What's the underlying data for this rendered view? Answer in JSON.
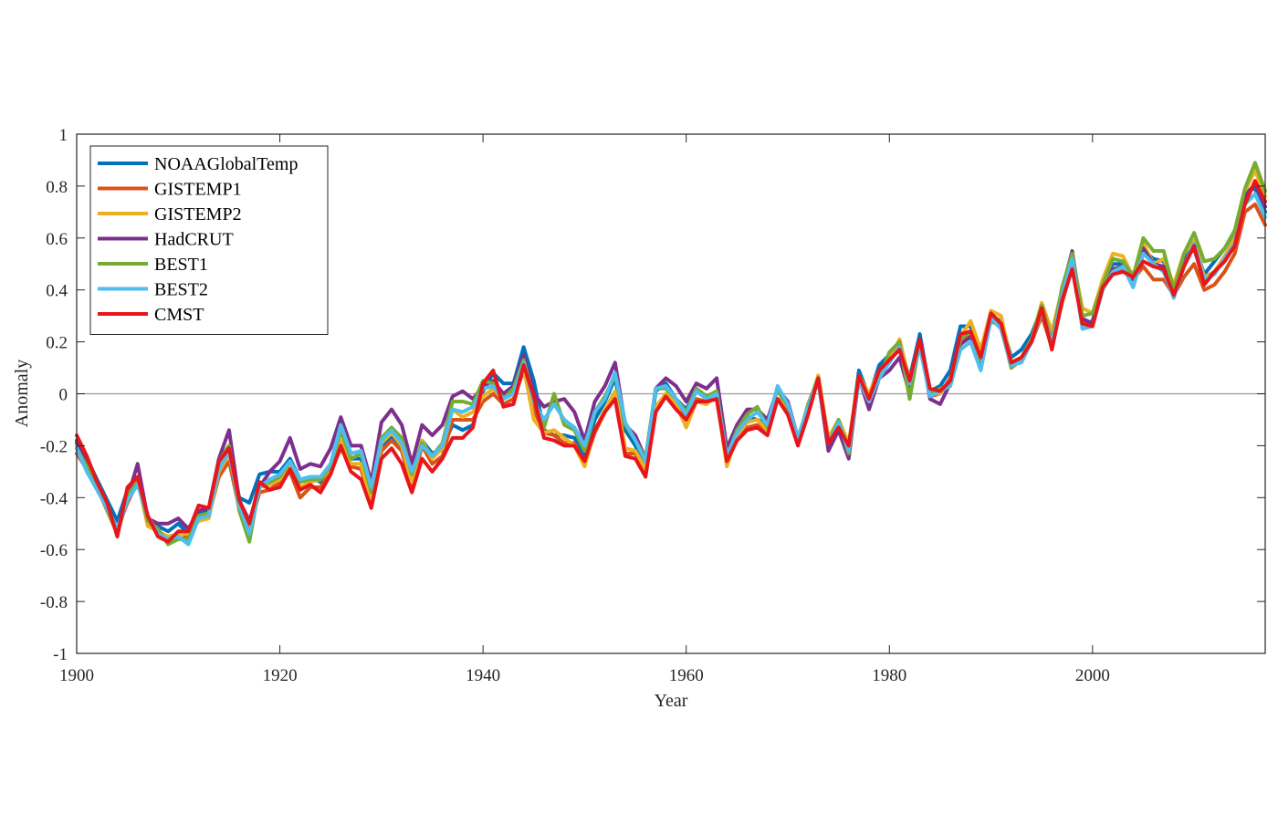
{
  "chart_data": {
    "type": "line",
    "title": "",
    "xlabel": "Year",
    "ylabel": "Anomaly",
    "xlim": [
      1900,
      2017
    ],
    "ylim": [
      -1,
      1
    ],
    "xticks": [
      1900,
      1920,
      1940,
      1960,
      1980,
      2000
    ],
    "yticks": [
      -1,
      -0.8,
      -0.6,
      -0.4,
      -0.2,
      0,
      0.2,
      0.4,
      0.6,
      0.8,
      1
    ],
    "ytick_labels": [
      "-1",
      "-0.8",
      "-0.6",
      "-0.4",
      "-0.2",
      "0",
      "0.2",
      "0.4",
      "0.6",
      "0.8",
      "1"
    ],
    "zero_line": true,
    "legend_position": "top-left",
    "x": [
      1900,
      1901,
      1902,
      1903,
      1904,
      1905,
      1906,
      1907,
      1908,
      1909,
      1910,
      1911,
      1912,
      1913,
      1914,
      1915,
      1916,
      1917,
      1918,
      1919,
      1920,
      1921,
      1922,
      1923,
      1924,
      1925,
      1926,
      1927,
      1928,
      1929,
      1930,
      1931,
      1932,
      1933,
      1934,
      1935,
      1936,
      1937,
      1938,
      1939,
      1940,
      1941,
      1942,
      1943,
      1944,
      1945,
      1946,
      1947,
      1948,
      1949,
      1950,
      1951,
      1952,
      1953,
      1954,
      1955,
      1956,
      1957,
      1958,
      1959,
      1960,
      1961,
      1962,
      1963,
      1964,
      1965,
      1966,
      1967,
      1968,
      1969,
      1970,
      1971,
      1972,
      1973,
      1974,
      1975,
      1976,
      1977,
      1978,
      1979,
      1980,
      1981,
      1982,
      1983,
      1984,
      1985,
      1986,
      1987,
      1988,
      1989,
      1990,
      1991,
      1992,
      1993,
      1994,
      1995,
      1996,
      1997,
      1998,
      1999,
      2000,
      2001,
      2002,
      2003,
      2004,
      2005,
      2006,
      2007,
      2008,
      2009,
      2010,
      2011,
      2012,
      2013,
      2014,
      2015,
      2016,
      2017
    ],
    "series": [
      {
        "name": "NOAAGlobalTemp",
        "color": "#0072BD",
        "values": [
          -0.19,
          -0.25,
          -0.33,
          -0.41,
          -0.49,
          -0.37,
          -0.33,
          -0.48,
          -0.51,
          -0.53,
          -0.5,
          -0.54,
          -0.46,
          -0.45,
          -0.26,
          -0.2,
          -0.4,
          -0.42,
          -0.31,
          -0.3,
          -0.3,
          -0.25,
          -0.33,
          -0.32,
          -0.34,
          -0.3,
          -0.14,
          -0.25,
          -0.25,
          -0.4,
          -0.2,
          -0.17,
          -0.21,
          -0.33,
          -0.18,
          -0.23,
          -0.21,
          -0.12,
          -0.14,
          -0.12,
          0.01,
          0.08,
          0.04,
          0.04,
          0.18,
          0.05,
          -0.14,
          -0.16,
          -0.16,
          -0.17,
          -0.24,
          -0.1,
          -0.03,
          0.06,
          -0.14,
          -0.2,
          -0.29,
          0.01,
          0.04,
          -0.02,
          -0.06,
          0.02,
          -0.01,
          0.0,
          -0.23,
          -0.14,
          -0.09,
          -0.1,
          -0.12,
          0.02,
          -0.06,
          -0.19,
          -0.06,
          0.07,
          -0.18,
          -0.12,
          -0.21,
          0.09,
          -0.01,
          0.11,
          0.15,
          0.19,
          0.06,
          0.23,
          0.01,
          0.03,
          0.09,
          0.26,
          0.26,
          0.14,
          0.3,
          0.28,
          0.14,
          0.17,
          0.23,
          0.33,
          0.21,
          0.39,
          0.53,
          0.27,
          0.28,
          0.43,
          0.5,
          0.5,
          0.46,
          0.55,
          0.52,
          0.51,
          0.42,
          0.51,
          0.58,
          0.46,
          0.51,
          0.56,
          0.62,
          0.78,
          0.79,
          0.7
        ]
      },
      {
        "name": "GISTEMP1",
        "color": "#D95319",
        "values": [
          -0.23,
          -0.29,
          -0.36,
          -0.45,
          -0.52,
          -0.42,
          -0.34,
          -0.49,
          -0.53,
          -0.56,
          -0.56,
          -0.55,
          -0.48,
          -0.47,
          -0.32,
          -0.26,
          -0.44,
          -0.52,
          -0.38,
          -0.37,
          -0.34,
          -0.3,
          -0.4,
          -0.36,
          -0.36,
          -0.3,
          -0.21,
          -0.28,
          -0.29,
          -0.43,
          -0.22,
          -0.18,
          -0.22,
          -0.36,
          -0.2,
          -0.27,
          -0.24,
          -0.1,
          -0.1,
          -0.1,
          -0.03,
          0.0,
          -0.04,
          -0.02,
          0.09,
          -0.06,
          -0.15,
          -0.16,
          -0.19,
          -0.19,
          -0.27,
          -0.15,
          -0.07,
          0.0,
          -0.23,
          -0.23,
          -0.31,
          -0.07,
          0.0,
          -0.04,
          -0.08,
          -0.02,
          -0.03,
          -0.02,
          -0.26,
          -0.17,
          -0.13,
          -0.12,
          -0.14,
          -0.02,
          -0.07,
          -0.19,
          -0.07,
          0.06,
          -0.19,
          -0.12,
          -0.21,
          0.05,
          -0.03,
          0.08,
          0.13,
          0.17,
          0.03,
          0.2,
          -0.01,
          0.0,
          0.06,
          0.21,
          0.22,
          0.14,
          0.28,
          0.26,
          0.1,
          0.13,
          0.2,
          0.3,
          0.18,
          0.35,
          0.49,
          0.28,
          0.27,
          0.41,
          0.47,
          0.48,
          0.44,
          0.49,
          0.44,
          0.44,
          0.38,
          0.45,
          0.5,
          0.4,
          0.42,
          0.47,
          0.54,
          0.7,
          0.73,
          0.65
        ]
      },
      {
        "name": "GISTEMP2",
        "color": "#EDB120",
        "values": [
          -0.2,
          -0.26,
          -0.35,
          -0.44,
          -0.52,
          -0.41,
          -0.33,
          -0.51,
          -0.53,
          -0.55,
          -0.54,
          -0.54,
          -0.49,
          -0.48,
          -0.3,
          -0.23,
          -0.42,
          -0.5,
          -0.36,
          -0.35,
          -0.33,
          -0.27,
          -0.36,
          -0.34,
          -0.33,
          -0.29,
          -0.18,
          -0.27,
          -0.27,
          -0.42,
          -0.19,
          -0.15,
          -0.2,
          -0.34,
          -0.18,
          -0.25,
          -0.21,
          -0.06,
          -0.09,
          -0.07,
          -0.01,
          0.02,
          -0.02,
          0.0,
          0.1,
          -0.1,
          -0.15,
          -0.14,
          -0.17,
          -0.2,
          -0.28,
          -0.14,
          -0.06,
          0.01,
          -0.21,
          -0.22,
          -0.29,
          -0.05,
          0.0,
          -0.04,
          -0.13,
          -0.03,
          -0.04,
          -0.01,
          -0.28,
          -0.16,
          -0.11,
          -0.1,
          -0.14,
          -0.02,
          -0.05,
          -0.18,
          -0.06,
          0.07,
          -0.17,
          -0.1,
          -0.19,
          0.07,
          0.0,
          0.09,
          0.13,
          0.21,
          0.05,
          0.2,
          0.0,
          0.0,
          0.05,
          0.22,
          0.28,
          0.17,
          0.32,
          0.3,
          0.12,
          0.14,
          0.21,
          0.35,
          0.24,
          0.4,
          0.53,
          0.33,
          0.31,
          0.44,
          0.54,
          0.53,
          0.45,
          0.58,
          0.5,
          0.52,
          0.42,
          0.54,
          0.59,
          0.45,
          0.47,
          0.53,
          0.6,
          0.78,
          0.86,
          0.76
        ]
      },
      {
        "name": "HadCRUT",
        "color": "#7E2F8E",
        "values": [
          -0.18,
          -0.27,
          -0.36,
          -0.44,
          -0.54,
          -0.4,
          -0.27,
          -0.48,
          -0.5,
          -0.5,
          -0.48,
          -0.52,
          -0.45,
          -0.44,
          -0.25,
          -0.14,
          -0.41,
          -0.49,
          -0.36,
          -0.3,
          -0.26,
          -0.17,
          -0.29,
          -0.27,
          -0.28,
          -0.21,
          -0.09,
          -0.2,
          -0.2,
          -0.34,
          -0.11,
          -0.06,
          -0.12,
          -0.27,
          -0.12,
          -0.16,
          -0.12,
          -0.01,
          0.01,
          -0.02,
          0.03,
          0.05,
          0.0,
          0.03,
          0.15,
          0.0,
          -0.05,
          -0.03,
          -0.02,
          -0.07,
          -0.18,
          -0.03,
          0.03,
          0.12,
          -0.12,
          -0.16,
          -0.25,
          0.02,
          0.06,
          0.03,
          -0.03,
          0.04,
          0.02,
          0.06,
          -0.21,
          -0.12,
          -0.06,
          -0.06,
          -0.1,
          0.02,
          -0.03,
          -0.17,
          -0.05,
          0.05,
          -0.22,
          -0.14,
          -0.25,
          0.06,
          -0.06,
          0.06,
          0.09,
          0.14,
          0.0,
          0.21,
          -0.02,
          -0.04,
          0.04,
          0.19,
          0.22,
          0.12,
          0.3,
          0.25,
          0.11,
          0.13,
          0.21,
          0.34,
          0.2,
          0.4,
          0.55,
          0.29,
          0.27,
          0.41,
          0.48,
          0.49,
          0.44,
          0.56,
          0.5,
          0.49,
          0.37,
          0.51,
          0.56,
          0.43,
          0.47,
          0.51,
          0.58,
          0.76,
          0.81,
          0.72
        ]
      },
      {
        "name": "BEST1",
        "color": "#77AC30",
        "values": [
          -0.21,
          -0.28,
          -0.35,
          -0.45,
          -0.54,
          -0.39,
          -0.34,
          -0.49,
          -0.52,
          -0.58,
          -0.56,
          -0.56,
          -0.47,
          -0.46,
          -0.26,
          -0.2,
          -0.45,
          -0.57,
          -0.35,
          -0.34,
          -0.32,
          -0.26,
          -0.34,
          -0.33,
          -0.33,
          -0.28,
          -0.14,
          -0.25,
          -0.23,
          -0.38,
          -0.17,
          -0.13,
          -0.17,
          -0.31,
          -0.19,
          -0.24,
          -0.19,
          -0.03,
          -0.03,
          -0.04,
          0.05,
          0.04,
          -0.02,
          0.02,
          0.13,
          -0.02,
          -0.13,
          0.0,
          -0.12,
          -0.14,
          -0.22,
          -0.07,
          -0.01,
          0.07,
          -0.12,
          -0.18,
          -0.25,
          0.02,
          0.02,
          -0.02,
          -0.07,
          0.02,
          -0.01,
          0.01,
          -0.24,
          -0.14,
          -0.08,
          -0.05,
          -0.13,
          0.02,
          -0.05,
          -0.18,
          -0.04,
          0.06,
          -0.19,
          -0.1,
          -0.23,
          0.06,
          -0.03,
          0.06,
          0.16,
          0.2,
          -0.02,
          0.2,
          0.0,
          0.02,
          0.04,
          0.21,
          0.24,
          0.13,
          0.31,
          0.27,
          0.1,
          0.14,
          0.21,
          0.34,
          0.2,
          0.41,
          0.54,
          0.3,
          0.31,
          0.42,
          0.52,
          0.51,
          0.45,
          0.6,
          0.55,
          0.55,
          0.4,
          0.54,
          0.62,
          0.51,
          0.52,
          0.56,
          0.63,
          0.79,
          0.89,
          0.78
        ]
      },
      {
        "name": "BEST2",
        "color": "#4DBEEE",
        "values": [
          -0.21,
          -0.3,
          -0.37,
          -0.44,
          -0.52,
          -0.41,
          -0.35,
          -0.47,
          -0.54,
          -0.56,
          -0.55,
          -0.58,
          -0.48,
          -0.47,
          -0.29,
          -0.22,
          -0.43,
          -0.54,
          -0.36,
          -0.33,
          -0.31,
          -0.26,
          -0.33,
          -0.32,
          -0.32,
          -0.27,
          -0.12,
          -0.23,
          -0.22,
          -0.36,
          -0.18,
          -0.14,
          -0.19,
          -0.3,
          -0.2,
          -0.24,
          -0.2,
          -0.06,
          -0.07,
          -0.05,
          0.02,
          0.03,
          -0.02,
          0.0,
          0.12,
          -0.03,
          -0.1,
          -0.04,
          -0.1,
          -0.13,
          -0.2,
          -0.07,
          -0.02,
          0.08,
          -0.11,
          -0.18,
          -0.26,
          0.02,
          0.03,
          -0.02,
          -0.08,
          0.01,
          -0.02,
          0.0,
          -0.24,
          -0.15,
          -0.1,
          -0.07,
          -0.12,
          0.03,
          -0.04,
          -0.17,
          -0.05,
          0.05,
          -0.19,
          -0.11,
          -0.22,
          0.05,
          -0.03,
          0.06,
          0.12,
          0.18,
          0.04,
          0.18,
          -0.01,
          0.01,
          0.03,
          0.17,
          0.2,
          0.09,
          0.29,
          0.25,
          0.11,
          0.12,
          0.2,
          0.32,
          0.19,
          0.38,
          0.52,
          0.25,
          0.26,
          0.4,
          0.47,
          0.49,
          0.41,
          0.54,
          0.5,
          0.47,
          0.37,
          0.49,
          0.58,
          0.44,
          0.46,
          0.52,
          0.58,
          0.73,
          0.77,
          0.68
        ]
      },
      {
        "name": "CMST",
        "color": "#E8161C",
        "values": [
          -0.16,
          -0.24,
          -0.34,
          -0.42,
          -0.55,
          -0.36,
          -0.32,
          -0.47,
          -0.55,
          -0.57,
          -0.53,
          -0.53,
          -0.43,
          -0.44,
          -0.26,
          -0.21,
          -0.41,
          -0.5,
          -0.34,
          -0.37,
          -0.36,
          -0.29,
          -0.37,
          -0.35,
          -0.38,
          -0.31,
          -0.2,
          -0.3,
          -0.33,
          -0.44,
          -0.25,
          -0.21,
          -0.27,
          -0.38,
          -0.25,
          -0.3,
          -0.25,
          -0.17,
          -0.17,
          -0.13,
          0.04,
          0.09,
          -0.05,
          -0.04,
          0.11,
          -0.01,
          -0.17,
          -0.18,
          -0.2,
          -0.2,
          -0.26,
          -0.14,
          -0.07,
          -0.02,
          -0.24,
          -0.25,
          -0.32,
          -0.07,
          -0.01,
          -0.06,
          -0.1,
          -0.03,
          -0.03,
          -0.02,
          -0.26,
          -0.18,
          -0.14,
          -0.13,
          -0.16,
          -0.02,
          -0.08,
          -0.2,
          -0.08,
          0.06,
          -0.19,
          -0.13,
          -0.2,
          0.07,
          -0.02,
          0.09,
          0.13,
          0.17,
          0.05,
          0.21,
          0.02,
          0.01,
          0.05,
          0.23,
          0.24,
          0.14,
          0.31,
          0.27,
          0.12,
          0.14,
          0.2,
          0.33,
          0.17,
          0.36,
          0.48,
          0.27,
          0.26,
          0.41,
          0.46,
          0.47,
          0.45,
          0.51,
          0.49,
          0.48,
          0.38,
          0.49,
          0.57,
          0.42,
          0.47,
          0.51,
          0.57,
          0.73,
          0.82,
          0.74
        ]
      }
    ]
  }
}
